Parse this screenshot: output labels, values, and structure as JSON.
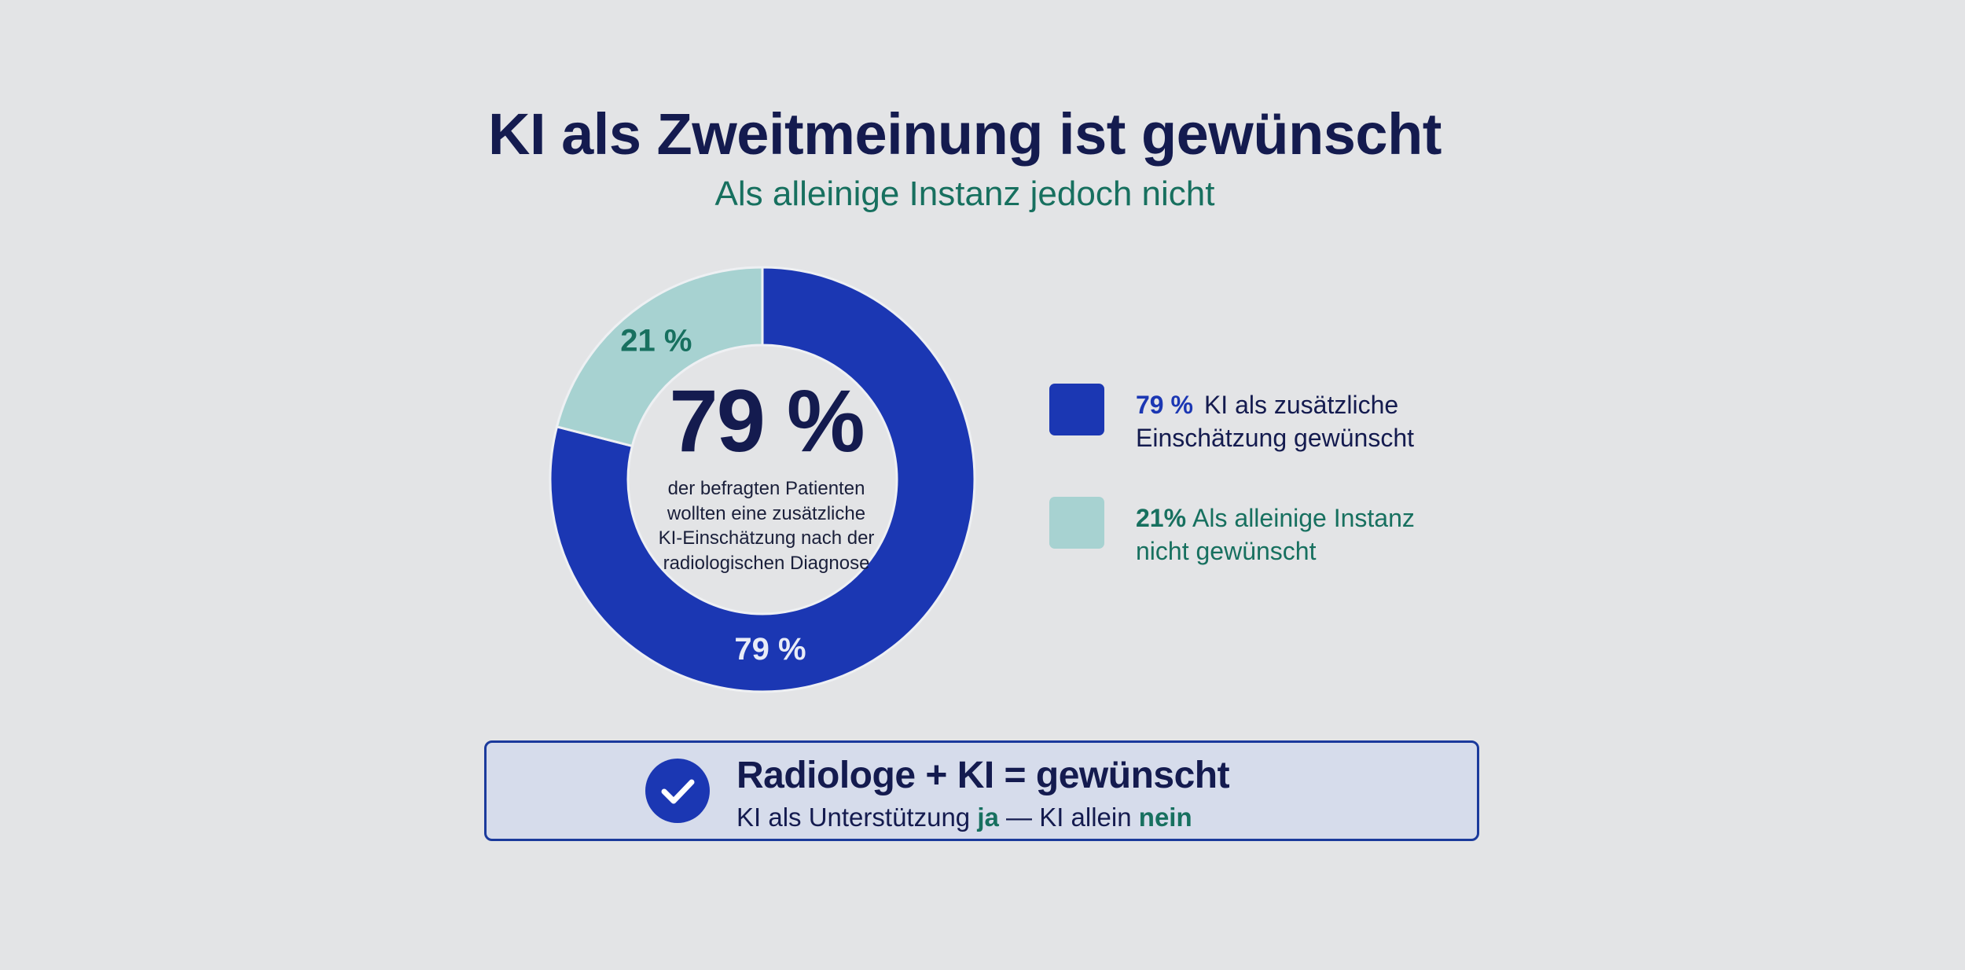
{
  "header": {
    "title": "KI als Zweitmeinung ist gewünscht",
    "subtitle": "Als alleinige Instanz jedoch nicht"
  },
  "center": {
    "big_value": "79 %",
    "lines": [
      "der befragten Patienten",
      "wollten eine zusätzliche",
      "KI-Einschätzung nach der",
      "radiologischen Diagnose"
    ]
  },
  "legend": [
    {
      "pct": "79 %",
      "line1": "KI als zusätzliche",
      "line2": "Einschätzung gewünscht"
    },
    {
      "pct": "21%",
      "line1": "Als alleinige Instanz",
      "line2": "nicht gewünscht"
    }
  ],
  "banner": {
    "title": "Radiologe + KI = gewünscht",
    "sub_part1": "KI als Unterstützung ",
    "sub_ja": "ja",
    "sub_part2": " — KI allein ",
    "sub_nein": "nein"
  },
  "colors": {
    "primary": "#1b37b3",
    "secondary": "#a7d2d1",
    "title": "#141b4f",
    "accent_green": "#17705f"
  },
  "chart_data": {
    "type": "pie",
    "variant": "donut",
    "title": "KI als Zweitmeinung ist gewünscht",
    "subtitle": "Als alleinige Instanz jedoch nicht",
    "start": "top",
    "direction": "clockwise",
    "slices": [
      {
        "label": "KI als zusätzliche Einschätzung gewünscht",
        "value": 79,
        "data_label": "79 %",
        "color": "#1b37b3"
      },
      {
        "label": "Als alleinige Instanz nicht gewünscht",
        "value": 21,
        "data_label": "21 %",
        "color": "#a7d2d1"
      }
    ],
    "legend_position": "right"
  }
}
